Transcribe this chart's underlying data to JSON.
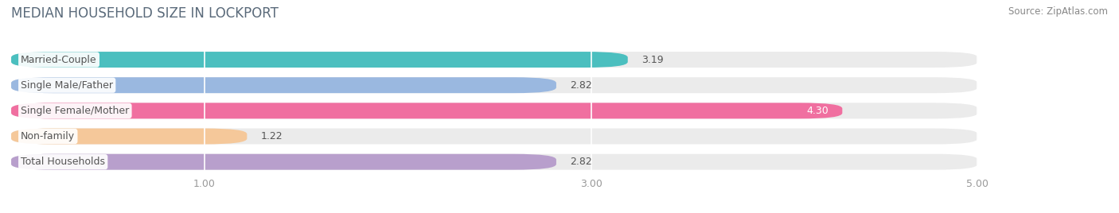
{
  "title": "MEDIAN HOUSEHOLD SIZE IN LOCKPORT",
  "source": "Source: ZipAtlas.com",
  "categories": [
    "Married-Couple",
    "Single Male/Father",
    "Single Female/Mother",
    "Non-family",
    "Total Households"
  ],
  "values": [
    3.19,
    2.82,
    4.3,
    1.22,
    2.82
  ],
  "bar_colors": [
    "#4bbfbf",
    "#9ab8e0",
    "#f06fa0",
    "#f5c89a",
    "#b89fcc"
  ],
  "background_color": "#ffffff",
  "bar_bg_color": "#ebebeb",
  "xlim_min": 0.0,
  "xlim_max": 5.5,
  "data_max": 5.0,
  "xticks": [
    1.0,
    3.0,
    5.0
  ],
  "title_fontsize": 12,
  "label_fontsize": 9,
  "value_fontsize": 9,
  "source_fontsize": 8.5,
  "bar_height": 0.62,
  "bar_gap": 0.38,
  "title_color": "#5a6a7a",
  "label_color": "#555555",
  "value_color_default": "#555555",
  "value_color_inside": "#ffffff",
  "source_color": "#888888",
  "tick_color": "#999999"
}
